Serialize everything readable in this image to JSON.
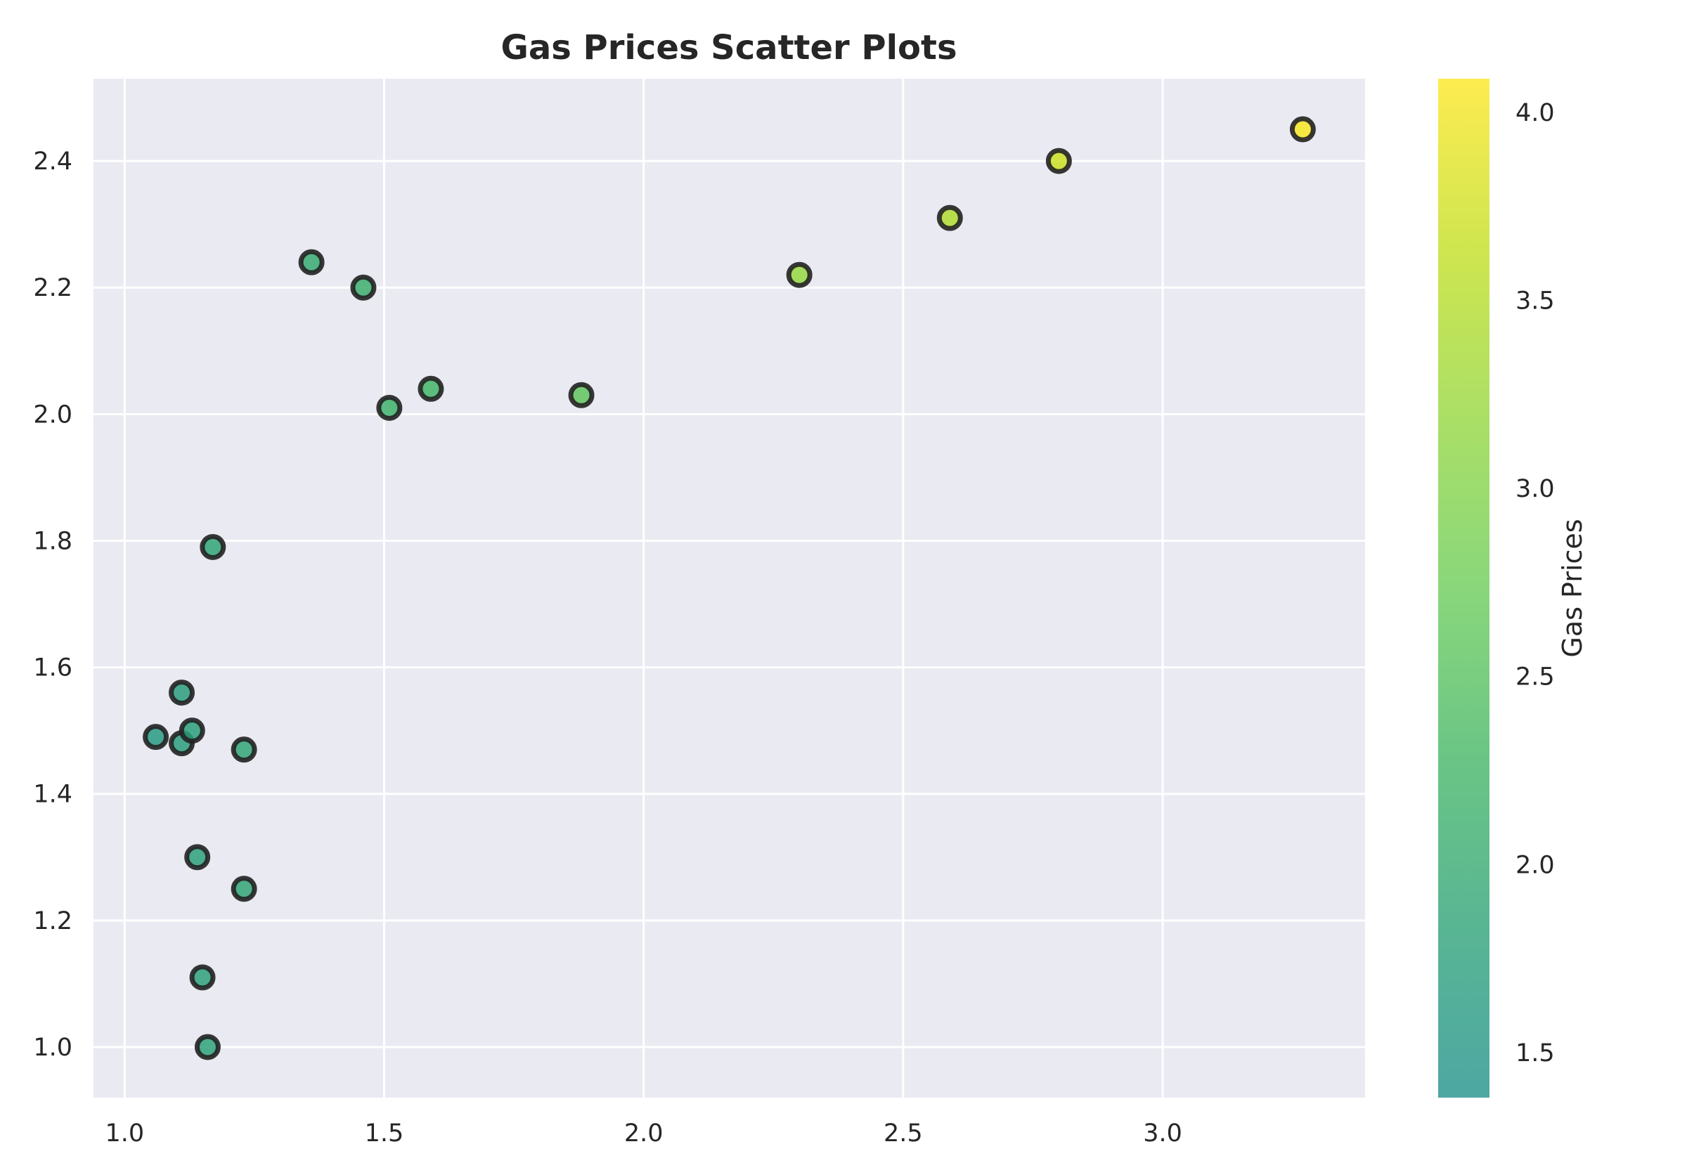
{
  "chart_data": {
    "type": "scatter",
    "title": "Gas Prices Scatter Plots",
    "xlabel": "",
    "ylabel": "",
    "xlim": [
      0.94,
      3.39
    ],
    "ylim": [
      0.92,
      2.53
    ],
    "xticks": [
      1.0,
      1.5,
      2.0,
      2.5,
      3.0
    ],
    "xtick_labels": [
      "1.0",
      "1.5",
      "2.0",
      "2.5",
      "3.0"
    ],
    "yticks": [
      1.0,
      1.2,
      1.4,
      1.6,
      1.8,
      2.0,
      2.2,
      2.4
    ],
    "ytick_labels": [
      "1.0",
      "1.2",
      "1.4",
      "1.6",
      "1.8",
      "2.0",
      "2.2",
      "2.4"
    ],
    "grid": true,
    "background_color": "#eaeaf2",
    "grid_color": "#ffffff",
    "marker_edge_color": "#222222",
    "colormap": "viridis (upper range), alpha 0.7",
    "points": [
      {
        "x": 1.06,
        "y": 1.49,
        "c": 1.6
      },
      {
        "x": 1.11,
        "y": 1.56,
        "c": 1.7
      },
      {
        "x": 1.11,
        "y": 1.48,
        "c": 1.7
      },
      {
        "x": 1.13,
        "y": 1.5,
        "c": 1.75
      },
      {
        "x": 1.14,
        "y": 1.3,
        "c": 1.78
      },
      {
        "x": 1.15,
        "y": 1.11,
        "c": 1.8
      },
      {
        "x": 1.16,
        "y": 1.0,
        "c": 1.82
      },
      {
        "x": 1.17,
        "y": 1.79,
        "c": 1.85
      },
      {
        "x": 1.23,
        "y": 1.47,
        "c": 1.9
      },
      {
        "x": 1.23,
        "y": 1.25,
        "c": 1.9
      },
      {
        "x": 1.36,
        "y": 2.24,
        "c": 2.0
      },
      {
        "x": 1.46,
        "y": 2.2,
        "c": 2.1
      },
      {
        "x": 1.51,
        "y": 2.01,
        "c": 2.15
      },
      {
        "x": 1.59,
        "y": 2.04,
        "c": 2.25
      },
      {
        "x": 1.88,
        "y": 2.03,
        "c": 2.6
      },
      {
        "x": 2.3,
        "y": 2.22,
        "c": 3.2
      },
      {
        "x": 2.59,
        "y": 2.31,
        "c": 3.45
      },
      {
        "x": 2.8,
        "y": 2.4,
        "c": 3.7
      },
      {
        "x": 3.27,
        "y": 2.45,
        "c": 4.05
      }
    ],
    "colorbar": {
      "label": "Gas Prices",
      "range": [
        1.38,
        4.09
      ],
      "ticks": [
        1.5,
        2.0,
        2.5,
        3.0,
        3.5,
        4.0
      ],
      "tick_labels": [
        "1.5",
        "2.0",
        "2.5",
        "3.0",
        "3.5",
        "4.0"
      ]
    }
  }
}
